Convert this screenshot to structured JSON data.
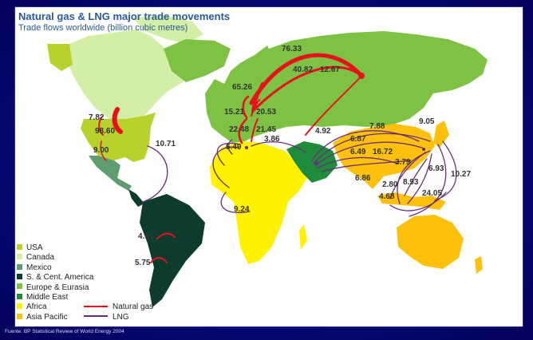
{
  "title": "Natural gas & LNG major trade movements",
  "subtitle": "Trade flows worldwide (billion cubic metres)",
  "source": "Fuente: BP Statistical Review of World Energy 2004",
  "colors": {
    "background": "#0a0a8c",
    "usa": "#b8d12c",
    "canada": "#d3efa7",
    "mexico": "#5f9c6f",
    "s_cent_america": "#0d3b2e",
    "europe_eurasia": "#7ec243",
    "middle_east": "#1e8c3a",
    "africa": "#fff200",
    "asia_pacific": "#fdc00b",
    "natural_gas": "#e8101c",
    "lng": "#6a2d7a"
  },
  "legend": {
    "regions": [
      {
        "label": "USA",
        "color": "#b8d12c"
      },
      {
        "label": "Canada",
        "color": "#d3efa7"
      },
      {
        "label": "Mexico",
        "color": "#5f9c6f"
      },
      {
        "label": "S. & Cent. America",
        "color": "#0d3b2e"
      },
      {
        "label": "Europe & Eurasia",
        "color": "#7ec243"
      },
      {
        "label": "Middle East",
        "color": "#1e8c3a"
      },
      {
        "label": "Africa",
        "color": "#fff200"
      },
      {
        "label": "Asia Pacific",
        "color": "#fdc00b"
      }
    ],
    "flow_types": [
      {
        "label": "Natural gas",
        "color": "#e8101c"
      },
      {
        "label": "LNG",
        "color": "#6a2d7a"
      }
    ]
  },
  "flows": [
    {
      "label": "76.33",
      "type": "Natural gas"
    },
    {
      "label": "40.82",
      "type": "Natural gas"
    },
    {
      "label": "12.67",
      "type": "Natural gas"
    },
    {
      "label": "65.26",
      "type": "Natural gas"
    },
    {
      "label": "15.21",
      "type": "Natural gas"
    },
    {
      "label": "20.53",
      "type": "Natural gas"
    },
    {
      "label": "22.48",
      "type": "Natural gas"
    },
    {
      "label": "21.45",
      "type": "Natural gas"
    },
    {
      "label": "6.49",
      "type": "Natural gas"
    },
    {
      "label": "3.86",
      "type": "LNG"
    },
    {
      "label": "7.82",
      "type": "Natural gas"
    },
    {
      "label": "98.60",
      "type": "Natural gas"
    },
    {
      "label": "9.00",
      "type": "Natural gas"
    },
    {
      "label": "10.71",
      "type": "LNG"
    },
    {
      "label": "9.24",
      "type": "LNG"
    },
    {
      "label": "4.92",
      "type": "LNG"
    },
    {
      "label": "7.88",
      "type": "LNG"
    },
    {
      "label": "6.87",
      "type": "LNG"
    },
    {
      "label": "6.49",
      "type": "LNG"
    },
    {
      "label": "16.72",
      "type": "LNG"
    },
    {
      "label": "9.05",
      "type": "LNG"
    },
    {
      "label": "3.79",
      "type": "LNG"
    },
    {
      "label": "6.86",
      "type": "LNG"
    },
    {
      "label": "2.80",
      "type": "LNG"
    },
    {
      "label": "8.93",
      "type": "LNG"
    },
    {
      "label": "6.93",
      "type": "LNG"
    },
    {
      "label": "10.27",
      "type": "LNG"
    },
    {
      "label": "4.68",
      "type": "LNG"
    },
    {
      "label": "24.05",
      "type": "LNG"
    },
    {
      "label": "4.91",
      "type": "Natural gas"
    },
    {
      "label": "5.75",
      "type": "Natural gas"
    }
  ]
}
